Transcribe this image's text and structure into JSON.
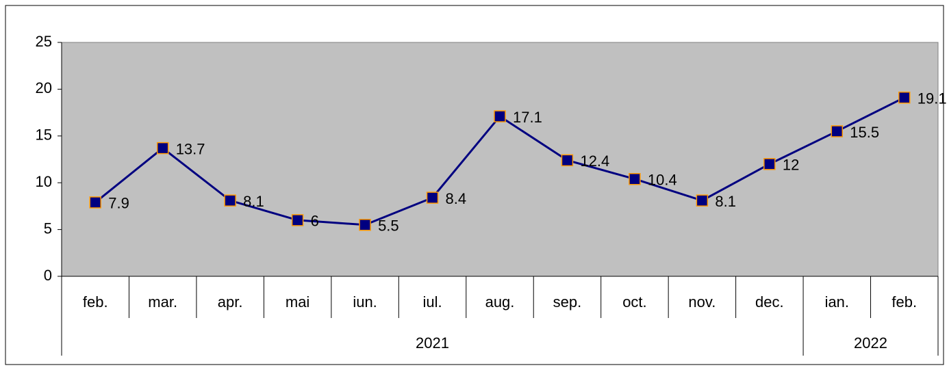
{
  "chart_data": {
    "type": "line",
    "category_groups": [
      {
        "name": "2021",
        "categories": [
          "feb.",
          "mar.",
          "apr.",
          "mai",
          "iun.",
          "iul.",
          "aug.",
          "sep.",
          "oct.",
          "nov.",
          "dec."
        ]
      },
      {
        "name": "2022",
        "categories": [
          "ian.",
          "feb."
        ]
      }
    ],
    "values": [
      7.9,
      13.7,
      8.1,
      6,
      5.5,
      8.4,
      17.1,
      12.4,
      10.4,
      8.1,
      12,
      15.5,
      19.1
    ],
    "color": "#000080",
    "marker_edge_color": "#ff9900",
    "plot_background": "#c0c0c0",
    "ylim": [
      0,
      25
    ],
    "yticks": [
      0,
      5,
      10,
      15,
      20,
      25
    ],
    "grid": false
  }
}
